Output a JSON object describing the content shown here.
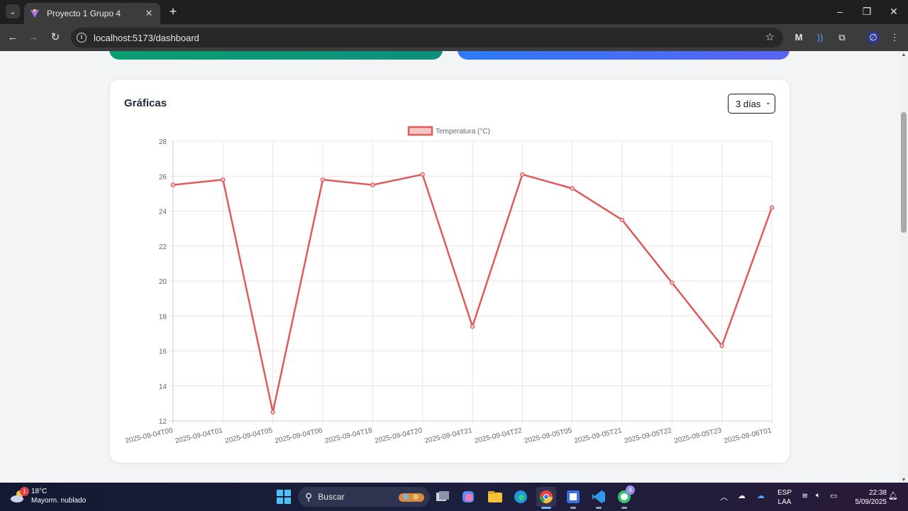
{
  "browser": {
    "tab_title": "Proyecto 1 Grupo 4",
    "url": "localhost:5173/dashboard"
  },
  "chart_card": {
    "title": "Gráficas",
    "range_selected": "3 días"
  },
  "chart_data": {
    "type": "line",
    "title": "",
    "legend_position": "top",
    "grid": true,
    "x": [
      "2025-09-04T00",
      "2025-09-04T01",
      "2025-09-04T05",
      "2025-09-04T06",
      "2025-09-04T18",
      "2025-09-04T20",
      "2025-09-04T21",
      "2025-09-04T22",
      "2025-09-05T05",
      "2025-09-05T21",
      "2025-09-05T22",
      "2025-09-05T23",
      "2025-09-06T01"
    ],
    "series": [
      {
        "name": "Temperatura (°C)",
        "color": "#e05a5a",
        "fill": "#f6c6c6",
        "values": [
          25.5,
          25.8,
          12.5,
          25.8,
          25.5,
          26.1,
          17.4,
          26.1,
          25.3,
          23.5,
          19.9,
          16.3,
          24.2
        ]
      }
    ],
    "ylim": [
      12,
      28
    ],
    "yticks": [
      12,
      14,
      16,
      18,
      20,
      22,
      24,
      26,
      28
    ],
    "xlabel": "",
    "ylabel": ""
  },
  "taskbar": {
    "weather_temp": "18°C",
    "weather_desc": "Mayorm. nublado",
    "weather_badge": "1",
    "search_label": "Buscar",
    "whatsapp_badge": "4",
    "lang_line1": "ESP",
    "lang_line2": "LAA",
    "time": "22:38",
    "date": "5/09/2025"
  }
}
